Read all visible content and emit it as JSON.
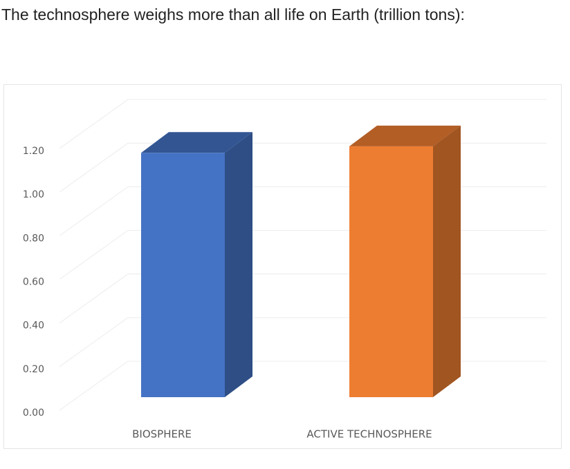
{
  "chart_data": {
    "type": "bar3d",
    "title": "The technosphere weighs more than all life on Earth (trillion tons):",
    "categories": [
      "BIOSPHERE",
      "ACTIVE TECHNOSPHERE"
    ],
    "values": [
      1.12,
      1.15
    ],
    "colors": [
      "#4472c4",
      "#ed7d31"
    ],
    "ylim": [
      0,
      1.2
    ],
    "yticks": [
      {
        "value": 0,
        "label": "0.00"
      },
      {
        "value": 0.2,
        "label": "0.20"
      },
      {
        "value": 0.4,
        "label": "0.40"
      },
      {
        "value": 0.6,
        "label": "0.60"
      },
      {
        "value": 0.8,
        "label": "0.80"
      },
      {
        "value": 1,
        "label": "1.00"
      },
      {
        "value": 1.2,
        "label": "1.20"
      }
    ],
    "grid": true
  }
}
